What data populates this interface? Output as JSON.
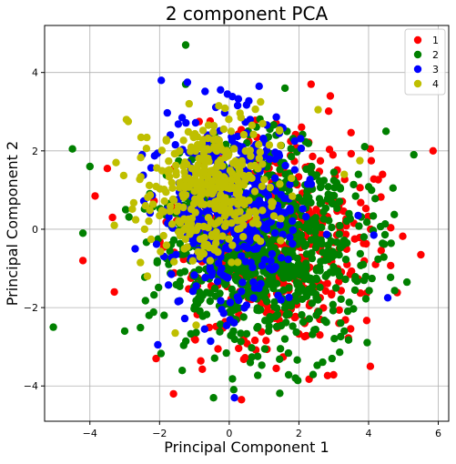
{
  "chart_data": {
    "type": "scatter",
    "title": "2 component PCA",
    "xlabel": "Principal Component 1",
    "ylabel": "Principal Component 2",
    "xlim": [
      -5.3,
      6.3
    ],
    "ylim": [
      -4.9,
      5.2
    ],
    "xticks": [
      -4,
      -2,
      0,
      2,
      4,
      6
    ],
    "yticks": [
      -4,
      -2,
      0,
      2,
      4
    ],
    "grid": true,
    "legend_position": "top-right",
    "series": [
      {
        "name": "1",
        "color": "#ff0000",
        "center": [
          1.2,
          -0.3
        ],
        "spread": [
          1.35,
          1.35
        ],
        "n": 500,
        "seed": 11,
        "points": [
          [
            2.35,
            3.7
          ],
          [
            2.9,
            3.4
          ],
          [
            5.85,
            2.0
          ],
          [
            4.05,
            2.05
          ],
          [
            4.4,
            1.4
          ],
          [
            5.5,
            -0.65
          ],
          [
            4.05,
            -3.5
          ],
          [
            0.35,
            -4.35
          ],
          [
            -1.6,
            -4.2
          ],
          [
            -2.1,
            -3.3
          ],
          [
            -3.3,
            -1.6
          ],
          [
            -4.2,
            -0.8
          ],
          [
            -3.35,
            0.3
          ],
          [
            -3.85,
            0.85
          ],
          [
            -3.5,
            1.55
          ],
          [
            1.35,
            -3.55
          ],
          [
            3.6,
            -0.25
          ],
          [
            2.6,
            -2.3
          ],
          [
            3.15,
            -2.4
          ],
          [
            4.2,
            -0.9
          ]
        ]
      },
      {
        "name": "2",
        "color": "#008000",
        "center": [
          0.9,
          -0.5
        ],
        "spread": [
          1.45,
          1.3
        ],
        "n": 900,
        "seed": 23,
        "points": [
          [
            -1.25,
            4.7
          ],
          [
            -5.05,
            -2.5
          ],
          [
            -4.5,
            2.05
          ],
          [
            -4.2,
            -0.1
          ],
          [
            4.5,
            2.5
          ],
          [
            5.3,
            1.9
          ],
          [
            4.7,
            1.05
          ],
          [
            -0.45,
            -4.3
          ],
          [
            1.9,
            -3.8
          ],
          [
            2.95,
            -3.3
          ],
          [
            5.1,
            -1.35
          ],
          [
            -4.0,
            1.6
          ],
          [
            1.6,
            3.6
          ],
          [
            -1.25,
            3.7
          ],
          [
            3.3,
            -2.6
          ],
          [
            -2.3,
            -2.2
          ],
          [
            -3.0,
            -2.6
          ]
        ]
      },
      {
        "name": "3",
        "color": "#0000ff",
        "center": [
          0.1,
          0.6
        ],
        "spread": [
          0.95,
          1.25
        ],
        "n": 450,
        "seed": 37,
        "points": [
          [
            -1.95,
            3.8
          ],
          [
            -1.2,
            3.75
          ],
          [
            -0.05,
            3.45
          ],
          [
            0.6,
            2.8
          ],
          [
            1.5,
            2.6
          ],
          [
            -2.05,
            -2.95
          ],
          [
            0.15,
            -4.3
          ],
          [
            4.55,
            -1.75
          ],
          [
            3.7,
            0.35
          ],
          [
            4.15,
            -0.15
          ],
          [
            -2.7,
            -0.5
          ],
          [
            -2.5,
            1.9
          ]
        ]
      },
      {
        "name": "4",
        "color": "#bfbf00",
        "center": [
          -0.6,
          1.0
        ],
        "spread": [
          0.9,
          0.85
        ],
        "n": 380,
        "seed": 53,
        "points": [
          [
            -2.95,
            2.8
          ],
          [
            -2.9,
            2.75
          ],
          [
            -1.15,
            3.2
          ],
          [
            -0.3,
            3.15
          ],
          [
            0.9,
            3.25
          ],
          [
            2.55,
            3.05
          ],
          [
            3.3,
            1.4
          ],
          [
            3.75,
            1.75
          ],
          [
            -3.3,
            0.1
          ],
          [
            -2.55,
            -0.85
          ],
          [
            -2.35,
            -1.2
          ],
          [
            -1.55,
            -2.65
          ],
          [
            -0.95,
            -2.45
          ],
          [
            -3.25,
            1.7
          ],
          [
            1.15,
            2.15
          ]
        ]
      }
    ]
  }
}
